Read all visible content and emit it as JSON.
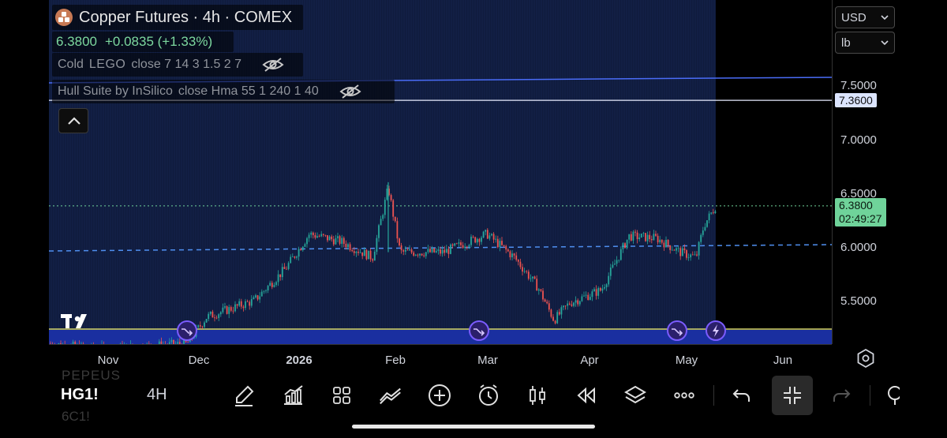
{
  "header": {
    "title": "Copper Futures · 4h · COMEX",
    "price": "6.3800",
    "change": "+0.0835 (+1.33%)"
  },
  "indicators": [
    {
      "name": "Cold",
      "label_mid": "LEGO",
      "params": "close 7 14 3 1.5 2 7"
    },
    {
      "name": "Hull Suite by InSilico",
      "label_mid": "",
      "params": "close Hma 55 1 240 1 40"
    }
  ],
  "currency_select": {
    "value": "USD"
  },
  "unit_select": {
    "value": "lb"
  },
  "price_axis": {
    "labels": [
      "7.5000",
      "7.0000",
      "6.5000",
      "6.0000",
      "5.5000"
    ],
    "hline_tag": "7.3600",
    "last_price_tag": "6.3800",
    "countdown": "02:49:27"
  },
  "time_axis": {
    "labels": [
      "Nov",
      "Dec",
      "2026",
      "Feb",
      "Mar",
      "Apr",
      "May",
      "Jun"
    ]
  },
  "toolbar": {
    "symbol": "HG1!",
    "interval": "4H",
    "ghost_above": "PEPEUS",
    "ghost_below": "6C1!",
    "tools": [
      "brush-icon",
      "indicators-icon",
      "layout-grid-icon",
      "compare-icon",
      "add-icon",
      "alert-clock-icon",
      "candles-icon",
      "replay-icon",
      "layers-icon",
      "more-icon",
      "undo-icon",
      "fullscreen-exit-icon",
      "redo-icon"
    ]
  },
  "colors": {
    "up": "#26a69a",
    "down": "#ef5350",
    "bg_band": "#0f1b3d",
    "hline_blue": "#4a6cf7",
    "hline_white": "#e8ecff",
    "yellow_line": "#d8d86a",
    "dashed_blue": "#4f8ff0",
    "last_price_bg": "#6fd39a",
    "accent_purple": "#7b5cff"
  },
  "chart_data": {
    "type": "candlestick",
    "symbol": "HG1!",
    "interval": "4h",
    "y_range": [
      5.0,
      7.9
    ],
    "x_labels": [
      "Nov",
      "Dec",
      "2026",
      "Feb",
      "Mar",
      "Apr",
      "May",
      "Jun"
    ],
    "horizontal_lines": [
      7.58,
      7.36,
      6.02
    ],
    "last_price": 6.38,
    "close_path": [
      [
        "Oct 25",
        5.1
      ],
      [
        "Nov 15",
        5.05
      ],
      [
        "Dec 1",
        5.2
      ],
      [
        "Dec 10",
        5.4
      ],
      [
        "Dec 20",
        5.55
      ],
      [
        "Jan 1",
        5.8
      ],
      [
        "Jan 10",
        6.1
      ],
      [
        "Jan 20",
        5.95
      ],
      [
        "Jan 28",
        6.55
      ],
      [
        "Feb 2",
        5.9
      ],
      [
        "Feb 15",
        5.95
      ],
      [
        "Mar 1",
        6.1
      ],
      [
        "Mar 10",
        5.9
      ],
      [
        "Mar 20",
        5.6
      ],
      [
        "Mar 25",
        5.3
      ],
      [
        "Apr 1",
        5.5
      ],
      [
        "Apr 15",
        5.8
      ],
      [
        "Apr 25",
        6.1
      ],
      [
        "May 5",
        6.05
      ],
      [
        "May 10",
        5.85
      ],
      [
        "May 15",
        6.0
      ],
      [
        "May 20",
        6.38
      ]
    ]
  }
}
